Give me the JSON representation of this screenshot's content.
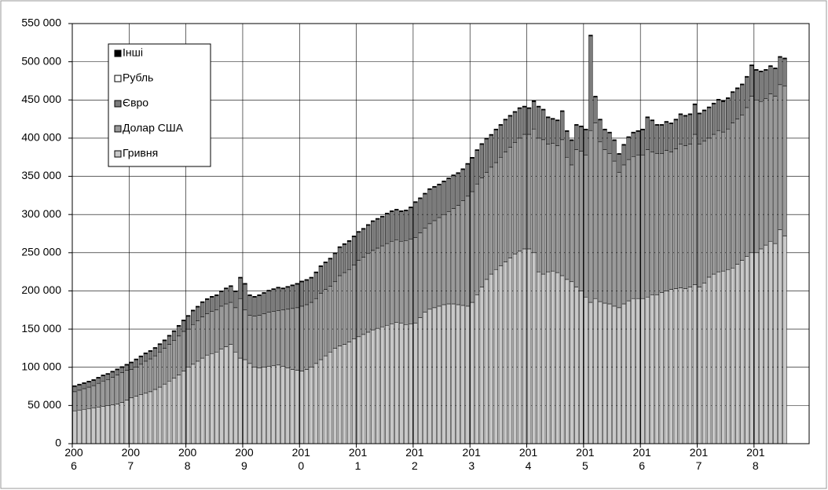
{
  "chart_data": {
    "type": "stacked_bar",
    "categories": [
      "2006",
      null,
      null,
      null,
      null,
      null,
      null,
      null,
      null,
      null,
      null,
      null,
      "2007",
      null,
      null,
      null,
      null,
      null,
      null,
      null,
      null,
      null,
      null,
      null,
      "2008",
      null,
      null,
      null,
      null,
      null,
      null,
      null,
      null,
      null,
      null,
      null,
      "2009",
      null,
      null,
      null,
      null,
      null,
      null,
      null,
      null,
      null,
      null,
      null,
      "2010",
      null,
      null,
      null,
      null,
      null,
      null,
      null,
      null,
      null,
      null,
      null,
      "2011",
      null,
      null,
      null,
      null,
      null,
      null,
      null,
      null,
      null,
      null,
      null,
      "2012",
      null,
      null,
      null,
      null,
      null,
      null,
      null,
      null,
      null,
      null,
      null,
      "2013",
      null,
      null,
      null,
      null,
      null,
      null,
      null,
      null,
      null,
      null,
      null,
      "2014",
      null,
      null,
      null,
      null,
      null,
      null,
      null,
      null,
      null,
      null,
      null,
      "2015",
      null,
      null,
      null,
      null,
      null,
      null,
      null,
      null,
      null,
      null,
      null,
      "2016",
      null,
      null,
      null,
      null,
      null,
      null,
      null,
      null,
      null,
      null,
      null,
      "2017",
      null,
      null,
      null,
      null,
      null,
      null,
      null,
      null,
      null,
      null,
      null,
      "2018",
      null,
      null,
      null,
      null,
      null,
      null
    ],
    "series": [
      {
        "name": "Гривня",
        "color": "#c8c8c8",
        "values": [
          43000,
          44000,
          45000,
          46000,
          47000,
          48000,
          49000,
          50000,
          51000,
          52000,
          54000,
          57000,
          60000,
          62000,
          64000,
          66000,
          68000,
          71000,
          74000,
          78000,
          82000,
          86000,
          90000,
          95000,
          100000,
          104000,
          108000,
          112000,
          116000,
          118000,
          120000,
          124000,
          127000,
          130000,
          120000,
          112000,
          110000,
          105000,
          100000,
          99000,
          100000,
          101000,
          102000,
          103000,
          101000,
          99000,
          97000,
          96000,
          95000,
          97000,
          100000,
          105000,
          110000,
          115000,
          120000,
          125000,
          128000,
          130000,
          133000,
          137000,
          140000,
          143000,
          146000,
          149000,
          151000,
          153000,
          155000,
          157000,
          159000,
          158000,
          156000,
          157000,
          158000,
          165000,
          172000,
          176000,
          178000,
          180000,
          182000,
          183000,
          183000,
          182000,
          181000,
          180000,
          185000,
          195000,
          205000,
          215000,
          222000,
          228000,
          233000,
          238000,
          243000,
          248000,
          252000,
          255000,
          255000,
          250000,
          225000,
          222000,
          225000,
          226000,
          224000,
          220000,
          215000,
          212000,
          205000,
          200000,
          192000,
          185000,
          190000,
          186000,
          184000,
          183000,
          180000,
          178000,
          183000,
          187000,
          190000,
          190000,
          190000,
          192000,
          195000,
          195000,
          198000,
          200000,
          202000,
          203000,
          204000,
          203000,
          205000,
          208000,
          205000,
          210000,
          218000,
          222000,
          225000,
          226000,
          228000,
          230000,
          235000,
          240000,
          245000,
          250000,
          250000,
          255000,
          260000,
          265000,
          262000,
          280000,
          272000
        ]
      },
      {
        "name": "Долар США",
        "color": "#9a9a9a",
        "values": [
          25000,
          26000,
          27000,
          28000,
          29000,
          31000,
          33000,
          34000,
          36000,
          38000,
          39000,
          39000,
          37000,
          38000,
          40000,
          42000,
          43000,
          44000,
          46000,
          47000,
          48000,
          49000,
          51000,
          52000,
          50000,
          52000,
          53000,
          54000,
          54000,
          55000,
          55000,
          56000,
          56000,
          55000,
          58000,
          78000,
          65000,
          63000,
          67000,
          69000,
          70000,
          71000,
          71000,
          71000,
          74000,
          77000,
          80000,
          82000,
          85000,
          85000,
          85000,
          85000,
          87000,
          87000,
          86000,
          87000,
          92000,
          94000,
          95000,
          97000,
          100000,
          101000,
          103000,
          104000,
          105000,
          106000,
          107000,
          108000,
          108000,
          107000,
          110000,
          111000,
          112000,
          111000,
          110000,
          112000,
          114000,
          116000,
          118000,
          121000,
          125000,
          130000,
          137000,
          144000,
          145000,
          145000,
          143000,
          140000,
          140000,
          140000,
          142000,
          144000,
          145000,
          146000,
          148000,
          150000,
          150000,
          162000,
          175000,
          176000,
          167000,
          167000,
          166000,
          178000,
          160000,
          153000,
          180000,
          183000,
          186000,
          225000,
          230000,
          209000,
          201000,
          197000,
          190000,
          177000,
          182000,
          185000,
          186000,
          188000,
          188000,
          193000,
          187000,
          185000,
          182000,
          184000,
          180000,
          183000,
          188000,
          187000,
          187000,
          197000,
          187000,
          186000,
          182000,
          183000,
          185000,
          182000,
          184000,
          190000,
          190000,
          190000,
          195000,
          205000,
          200000,
          193000,
          192000,
          193000,
          193000,
          190000,
          196000
        ]
      },
      {
        "name": "Євро",
        "color": "#7c7c7c",
        "values": [
          6700,
          6700,
          6700,
          6700,
          6700,
          6700,
          6700,
          6700,
          6700,
          6700,
          6700,
          6700,
          8700,
          9700,
          9700,
          9700,
          9700,
          9700,
          9700,
          9700,
          10700,
          11700,
          12700,
          13700,
          16700,
          17700,
          17700,
          18700,
          18700,
          18700,
          18700,
          18700,
          19700,
          20700,
          20700,
          26700,
          33700,
          25700,
          24700,
          25700,
          26700,
          27700,
          28700,
          29700,
          27700,
          28700,
          29700,
          30700,
          31700,
          31700,
          31700,
          33700,
          34700,
          34700,
          35700,
          36700,
          36700,
          36700,
          36700,
          36700,
          36700,
          36700,
          36700,
          37700,
          37700,
          37700,
          38700,
          38700,
          38700,
          38700,
          38700,
          40700,
          45700,
          44700,
          44700,
          44700,
          43700,
          42700,
          42700,
          42700,
          42700,
          41700,
          40700,
          41700,
          43700,
          43700,
          43700,
          43700,
          41700,
          42700,
          41700,
          41700,
          40700,
          39700,
          38700,
          35700,
          33700,
          35700,
          40700,
          38700,
          34700,
          31700,
          32700,
          36700,
          33700,
          31700,
          31700,
          31700,
          32700,
          123700,
          33700,
          28700,
          25700,
          26700,
          26700,
          23700,
          25700,
          28700,
          30700,
          30700,
          32700,
          41700,
          40700,
          36700,
          36700,
          36700,
          36700,
          37700,
          38700,
          38700,
          38700,
          38700,
          39700,
          39700,
          39700,
          39700,
          39700,
          39700,
          39700,
          39700,
          39700,
          39700,
          39700,
          39700,
          38700,
          38700,
          36700,
          35700,
          35700,
          35700,
          35700
        ]
      },
      {
        "name": "Рубль",
        "color": "#ffffff",
        "values": [
          500,
          500,
          500,
          500,
          500,
          500,
          500,
          500,
          500,
          500,
          500,
          500,
          500,
          500,
          500,
          500,
          500,
          500,
          500,
          500,
          500,
          500,
          500,
          500,
          500,
          500,
          500,
          500,
          500,
          500,
          500,
          500,
          500,
          500,
          500,
          500,
          500,
          500,
          500,
          500,
          500,
          500,
          500,
          500,
          500,
          500,
          500,
          500,
          500,
          500,
          500,
          500,
          500,
          500,
          500,
          500,
          500,
          500,
          500,
          500,
          500,
          500,
          500,
          500,
          500,
          500,
          500,
          500,
          500,
          500,
          500,
          500,
          500,
          500,
          500,
          500,
          500,
          500,
          500,
          500,
          500,
          500,
          500,
          500,
          500,
          500,
          500,
          500,
          500,
          500,
          500,
          500,
          500,
          500,
          500,
          500,
          500,
          500,
          500,
          500,
          500,
          500,
          500,
          500,
          500,
          500,
          500,
          500,
          500,
          500,
          500,
          500,
          500,
          500,
          500,
          500,
          500,
          500,
          500,
          500,
          500,
          500,
          500,
          500,
          500,
          500,
          500,
          500,
          500,
          500,
          500,
          500,
          500,
          500,
          500,
          500,
          500,
          500,
          500,
          500,
          500,
          500,
          500,
          500,
          500,
          500,
          500,
          500,
          500,
          500,
          500
        ]
      },
      {
        "name": "Інші",
        "color": "#000000",
        "values": [
          800,
          800,
          800,
          800,
          800,
          800,
          800,
          800,
          800,
          800,
          800,
          800,
          800,
          800,
          800,
          800,
          800,
          800,
          800,
          800,
          800,
          800,
          800,
          800,
          800,
          800,
          800,
          800,
          800,
          800,
          800,
          800,
          800,
          800,
          800,
          800,
          800,
          800,
          800,
          800,
          800,
          800,
          800,
          800,
          800,
          800,
          800,
          800,
          800,
          800,
          800,
          800,
          800,
          800,
          800,
          800,
          800,
          800,
          800,
          800,
          800,
          800,
          800,
          800,
          800,
          800,
          800,
          800,
          800,
          800,
          800,
          800,
          800,
          800,
          800,
          800,
          800,
          800,
          800,
          800,
          800,
          800,
          800,
          800,
          800,
          800,
          800,
          800,
          800,
          800,
          800,
          800,
          800,
          800,
          800,
          800,
          800,
          800,
          800,
          800,
          800,
          800,
          800,
          800,
          800,
          800,
          800,
          800,
          800,
          800,
          800,
          800,
          800,
          800,
          800,
          800,
          800,
          800,
          800,
          800,
          800,
          800,
          800,
          800,
          800,
          800,
          800,
          800,
          800,
          800,
          800,
          800,
          800,
          800,
          800,
          800,
          800,
          800,
          800,
          800,
          800,
          800,
          800,
          800,
          800,
          800,
          800,
          800,
          800,
          800,
          800
        ]
      }
    ],
    "ylim": [
      0,
      550000
    ],
    "yticks": [
      0,
      {
        "value": 50000,
        "label": "50 000"
      },
      {
        "value": 100000,
        "label": "100 000"
      },
      {
        "value": 150000,
        "label": "150 000"
      },
      {
        "value": 200000,
        "label": "200 000"
      },
      {
        "value": 250000,
        "label": "250 000"
      },
      {
        "value": 300000,
        "label": "300 000"
      },
      {
        "value": 350000,
        "label": "350 000"
      },
      {
        "value": 400000,
        "label": "400 000"
      },
      {
        "value": 450000,
        "label": "450 000"
      },
      {
        "value": 500000,
        "label": "500 000"
      },
      {
        "value": 550000,
        "label": "550 000"
      }
    ],
    "grid": true,
    "legend": "upper left"
  }
}
